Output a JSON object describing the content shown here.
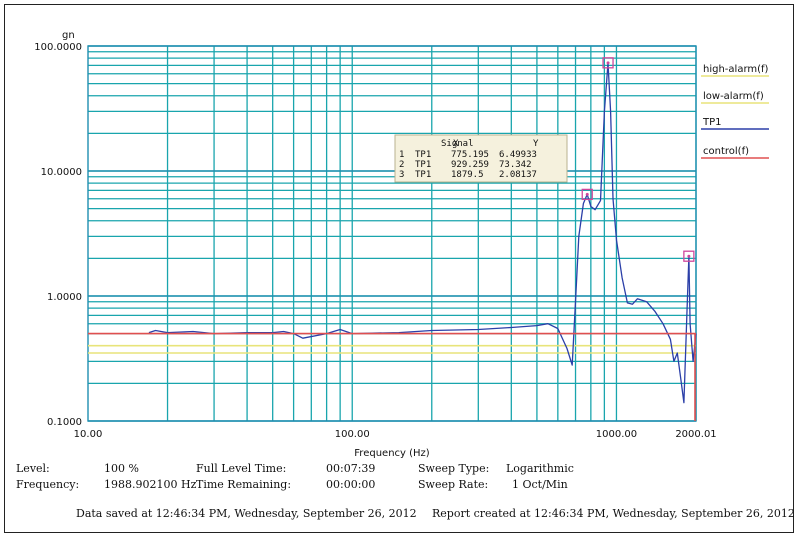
{
  "chart_data": {
    "type": "line",
    "title": "",
    "xlabel": "Frequency (Hz)",
    "ylabel": "gn",
    "x_scale": "log",
    "y_scale": "log",
    "xlim": [
      10,
      2000.01
    ],
    "ylim": [
      0.1,
      100
    ],
    "x_tick_labels": [
      {
        "value": 10,
        "label": "10.00"
      },
      {
        "value": 100,
        "label": "100.00"
      },
      {
        "value": 1000,
        "label": "1000.00"
      },
      {
        "value": 2000.01,
        "label": "2000.01"
      }
    ],
    "y_tick_labels": [
      {
        "value": 100,
        "label": "100.0000"
      },
      {
        "value": 10,
        "label": "10.0000"
      },
      {
        "value": 1,
        "label": "1.0000"
      },
      {
        "value": 0.1,
        "label": "0.1000"
      }
    ],
    "grid": true,
    "legend_position": "right",
    "series": [
      {
        "name": "high-alarm(f)",
        "color": "#e8e47a",
        "x": [
          10,
          2000.01
        ],
        "y": [
          0.4,
          0.4
        ]
      },
      {
        "name": "low-alarm(f)",
        "color": "#e8e47a",
        "x": [
          10,
          2000.01
        ],
        "y": [
          0.35,
          0.35
        ]
      },
      {
        "name": "TP1",
        "color": "#2b3fa8",
        "x": [
          17,
          18,
          20,
          25,
          30,
          40,
          50,
          55,
          60,
          65,
          80,
          90,
          100,
          150,
          200,
          300,
          400,
          500,
          550,
          600,
          650,
          680,
          700,
          720,
          750,
          775,
          800,
          830,
          870,
          900,
          929,
          950,
          970,
          1000,
          1050,
          1100,
          1150,
          1200,
          1300,
          1400,
          1500,
          1600,
          1650,
          1700,
          1750,
          1800,
          1850,
          1880,
          1900,
          1950,
          2000
        ],
        "y": [
          0.51,
          0.53,
          0.51,
          0.52,
          0.5,
          0.51,
          0.51,
          0.52,
          0.5,
          0.46,
          0.5,
          0.54,
          0.5,
          0.51,
          0.53,
          0.54,
          0.56,
          0.58,
          0.6,
          0.55,
          0.38,
          0.28,
          0.9,
          3.0,
          5.5,
          6.5,
          5.2,
          4.9,
          5.8,
          30,
          73,
          30,
          6,
          2.8,
          1.4,
          0.88,
          0.86,
          0.95,
          0.9,
          0.75,
          0.6,
          0.45,
          0.3,
          0.35,
          0.22,
          0.14,
          0.8,
          2.08,
          0.6,
          0.3,
          0.5
        ]
      },
      {
        "name": "control(f)",
        "color": "#e05050",
        "x": [
          10,
          2000.01
        ],
        "y": [
          0.5,
          0.5
        ]
      }
    ],
    "markers": [
      {
        "x": 775.195,
        "y": 6.49933
      },
      {
        "x": 929.259,
        "y": 73.342
      },
      {
        "x": 1879.5,
        "y": 2.08137
      }
    ],
    "annotation_table": {
      "headers": [
        "",
        "Signal",
        "X",
        "Y"
      ],
      "rows": [
        [
          "1",
          "TP1",
          "775.195",
          "6.49933"
        ],
        [
          "2",
          "TP1",
          "929.259",
          "73.342"
        ],
        [
          "3",
          "TP1",
          "1879.5",
          "2.08137"
        ]
      ]
    }
  },
  "info": {
    "level_label": "Level:",
    "level_value": "100 %",
    "frequency_label": "Frequency:",
    "frequency_value": "1988.902100 Hz",
    "full_level_time_label": "Full Level Time:",
    "full_level_time_value": "00:07:39",
    "time_remaining_label": "Time Remaining:",
    "time_remaining_value": "00:00:00",
    "sweep_type_label": "Sweep Type:",
    "sweep_type_value": "Logarithmic",
    "sweep_rate_label": "Sweep Rate:",
    "sweep_rate_value": "1 Oct/Min",
    "data_saved": "Data saved at 12:46:34 PM, Wednesday, September 26, 2012",
    "report_created": "Report created at 12:46:34 PM, Wednesday, September 26, 2012"
  }
}
